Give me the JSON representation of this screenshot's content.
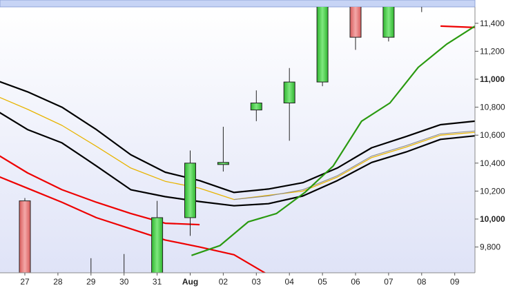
{
  "chart_data": {
    "type": "candlestick",
    "ylim": [
      9600,
      11550
    ],
    "grid": false,
    "x_labels": [
      "27",
      "28",
      "29",
      "30",
      "31",
      "Aug",
      "02",
      "03",
      "04",
      "05",
      "06",
      "07",
      "08",
      "09"
    ],
    "x_label_bold": [
      "Aug"
    ],
    "y_ticks": [
      {
        "value": 9800,
        "label": "9,800",
        "bold": false
      },
      {
        "value": 10000,
        "label": "10,000",
        "bold": true
      },
      {
        "value": 10200,
        "label": "10,200",
        "bold": false
      },
      {
        "value": 10400,
        "label": "10,400",
        "bold": false
      },
      {
        "value": 10600,
        "label": "10,600",
        "bold": false
      },
      {
        "value": 10800,
        "label": "10,800",
        "bold": false
      },
      {
        "value": 11000,
        "label": "11,000",
        "bold": true
      },
      {
        "value": 11200,
        "label": "11,200",
        "bold": false
      },
      {
        "value": 11400,
        "label": "11,400",
        "bold": false
      }
    ],
    "candles": [
      {
        "x": "27",
        "open": 10130,
        "high": 10150,
        "low": 9600,
        "close": 9600
      },
      {
        "x": "29",
        "open": 9600,
        "high": 9720,
        "low": 9600,
        "close": 9600
      },
      {
        "x": "30",
        "open": 9600,
        "high": 9750,
        "low": 9600,
        "close": 9600
      },
      {
        "x": "31",
        "open": 9600,
        "high": 10130,
        "low": 9600,
        "close": 10010
      },
      {
        "x": "Aug",
        "open": 10010,
        "high": 10490,
        "low": 9880,
        "close": 10400
      },
      {
        "x": "02",
        "open": 10390,
        "high": 10660,
        "low": 10340,
        "close": 10405
      },
      {
        "x": "03",
        "open": 10780,
        "high": 10920,
        "low": 10700,
        "close": 10830
      },
      {
        "x": "04",
        "open": 10830,
        "high": 11080,
        "low": 10560,
        "close": 10980
      },
      {
        "x": "05",
        "open": 10980,
        "high": 11550,
        "low": 10950,
        "close": 11550
      },
      {
        "x": "06",
        "open": 11550,
        "high": 11550,
        "low": 11210,
        "close": 11300
      },
      {
        "x": "07",
        "open": 11300,
        "high": 11550,
        "low": 11270,
        "close": 11550
      },
      {
        "x": "08",
        "open": 11550,
        "high": 11550,
        "low": 11480,
        "close": 11550
      }
    ],
    "series": [
      {
        "color": "#000000",
        "width": 2.2,
        "values": [
          10790,
          10640,
          10545,
          10380,
          10210,
          10160,
          10125,
          10095,
          10110,
          10165,
          10275,
          10405,
          10480,
          10570,
          10595
        ]
      },
      {
        "color": "#000000",
        "width": 2.2,
        "values": [
          11000,
          10910,
          10800,
          10640,
          10460,
          10335,
          10275,
          10190,
          10215,
          10260,
          10365,
          10510,
          10590,
          10675,
          10700
        ]
      },
      {
        "color": "#e8b400",
        "width": 1.3,
        "values": [
          10890,
          10785,
          10670,
          10520,
          10365,
          10270,
          10220,
          10140,
          10170,
          10200,
          10300,
          10440,
          10515,
          10600,
          10620
        ]
      },
      {
        "color": "#888888",
        "width": 1,
        "values": [
          null,
          null,
          null,
          null,
          null,
          null,
          null,
          10140,
          10165,
          10210,
          10310,
          10450,
          10525,
          10610,
          10630
        ]
      },
      {
        "color": "#ee0000",
        "width": 2.2,
        "values": [
          10320,
          10220,
          10120,
          10010,
          9930,
          9850,
          9800,
          9745,
          9600,
          null,
          null,
          null,
          null,
          null,
          null
        ]
      },
      {
        "color": "#ee0000",
        "width": 2.2,
        "values": [
          10480,
          10330,
          10210,
          10120,
          10040,
          9970,
          9960,
          null,
          null,
          null,
          null,
          null,
          null,
          11380,
          11370
        ]
      },
      {
        "color": "#2a9a10",
        "width": 2.2,
        "values": [
          null,
          null,
          null,
          null,
          null,
          null,
          null,
          9740,
          9810,
          9980,
          10040,
          10190,
          10380,
          10700,
          10830,
          11085,
          11250,
          11380
        ]
      }
    ]
  }
}
